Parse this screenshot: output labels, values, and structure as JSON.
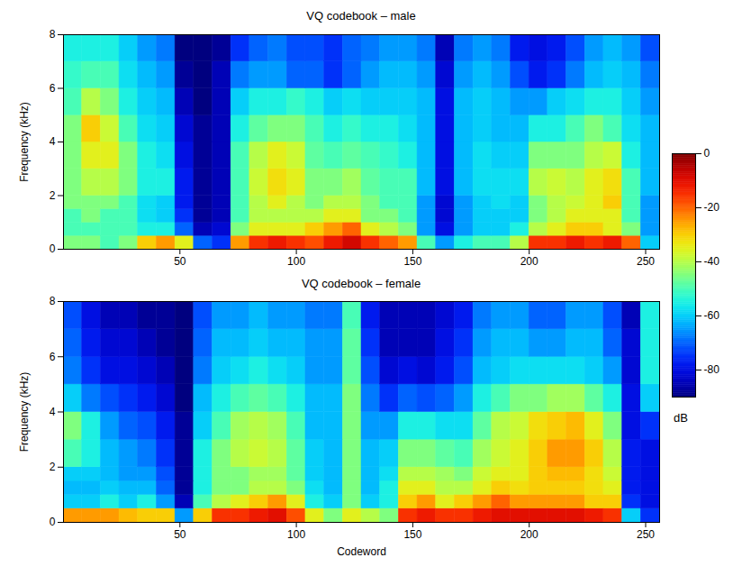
{
  "chart_data": [
    {
      "type": "heatmap",
      "title": "VQ codebook – male",
      "ylabel": "Frequency (kHz)",
      "xlim": [
        0,
        256
      ],
      "xticks": [
        50,
        100,
        150,
        200,
        250
      ],
      "ylim": [
        0,
        8
      ],
      "yticks": [
        0,
        2,
        4,
        6,
        8
      ],
      "x_edges": [
        0,
        8,
        16,
        24,
        32,
        40,
        48,
        56,
        64,
        72,
        80,
        88,
        96,
        104,
        112,
        120,
        128,
        136,
        144,
        152,
        160,
        168,
        176,
        184,
        192,
        200,
        208,
        216,
        224,
        232,
        240,
        248,
        256
      ],
      "y_edges": [
        0,
        0.5,
        1,
        1.5,
        2,
        3,
        4,
        5,
        6,
        7,
        8
      ],
      "cells": [
        [
          -45,
          -45,
          -50,
          -45,
          -30,
          -25,
          -35,
          -70,
          -75,
          -25,
          -15,
          -12,
          -15,
          -18,
          -12,
          -8,
          -15,
          -20,
          -25,
          -50,
          -65,
          -55,
          -50,
          -50,
          -40,
          -15,
          -15,
          -12,
          -15,
          -12,
          -20,
          -60
        ],
        [
          -50,
          -50,
          -50,
          -50,
          -55,
          -55,
          -70,
          -85,
          -82,
          -45,
          -35,
          -35,
          -35,
          -30,
          -25,
          -20,
          -35,
          -40,
          -45,
          -65,
          -80,
          -65,
          -60,
          -60,
          -55,
          -40,
          -35,
          -30,
          -30,
          -35,
          -45,
          -65
        ],
        [
          -50,
          -45,
          -50,
          -50,
          -58,
          -60,
          -75,
          -88,
          -85,
          -50,
          -40,
          -40,
          -40,
          -40,
          -35,
          -35,
          -45,
          -45,
          -50,
          -65,
          -82,
          -65,
          -60,
          -60,
          -60,
          -45,
          -40,
          -35,
          -35,
          -35,
          -50,
          -65
        ],
        [
          -45,
          -45,
          -45,
          -50,
          -58,
          -60,
          -78,
          -88,
          -85,
          -50,
          -40,
          -35,
          -40,
          -45,
          -40,
          -40,
          -45,
          -50,
          -50,
          -65,
          -82,
          -65,
          -60,
          -58,
          -60,
          -45,
          -40,
          -38,
          -35,
          -30,
          -50,
          -65
        ],
        [
          -45,
          -40,
          -40,
          -45,
          -55,
          -55,
          -78,
          -88,
          -85,
          -50,
          -38,
          -32,
          -35,
          -45,
          -45,
          -42,
          -48,
          -50,
          -50,
          -62,
          -80,
          -62,
          -58,
          -58,
          -58,
          -40,
          -38,
          -40,
          -35,
          -32,
          -50,
          -62
        ],
        [
          -45,
          -35,
          -35,
          -45,
          -55,
          -58,
          -80,
          -88,
          -85,
          -50,
          -40,
          -35,
          -38,
          -48,
          -50,
          -48,
          -50,
          -52,
          -55,
          -62,
          -80,
          -62,
          -58,
          -60,
          -60,
          -45,
          -45,
          -45,
          -40,
          -38,
          -55,
          -62
        ],
        [
          -45,
          -30,
          -38,
          -50,
          -58,
          -60,
          -82,
          -88,
          -85,
          -55,
          -48,
          -45,
          -45,
          -50,
          -55,
          -52,
          -55,
          -55,
          -58,
          -62,
          -80,
          -62,
          -60,
          -62,
          -62,
          -55,
          -55,
          -50,
          -45,
          -50,
          -58,
          -62
        ],
        [
          -50,
          -40,
          -45,
          -55,
          -60,
          -62,
          -85,
          -90,
          -85,
          -60,
          -55,
          -55,
          -52,
          -55,
          -60,
          -58,
          -60,
          -60,
          -60,
          -62,
          -80,
          -62,
          -60,
          -62,
          -65,
          -65,
          -60,
          -58,
          -55,
          -55,
          -60,
          -65
        ],
        [
          -52,
          -50,
          -50,
          -58,
          -62,
          -65,
          -88,
          -90,
          -85,
          -68,
          -65,
          -65,
          -70,
          -70,
          -75,
          -70,
          -65,
          -62,
          -62,
          -65,
          -82,
          -65,
          -62,
          -65,
          -72,
          -78,
          -75,
          -68,
          -62,
          -60,
          -62,
          -68
        ],
        [
          -55,
          -55,
          -55,
          -60,
          -65,
          -68,
          -90,
          -90,
          -88,
          -75,
          -70,
          -68,
          -72,
          -72,
          -75,
          -70,
          -68,
          -65,
          -65,
          -68,
          -85,
          -68,
          -65,
          -68,
          -78,
          -80,
          -78,
          -72,
          -65,
          -62,
          -65,
          -72
        ]
      ],
      "colorbar": {
        "range": [
          -90,
          0
        ],
        "ticks": [
          -80,
          -60,
          -40,
          -20,
          0
        ],
        "label": "dB"
      }
    },
    {
      "type": "heatmap",
      "title": "VQ codebook – female",
      "xlabel": "Codeword",
      "ylabel": "Frequency (kHz)",
      "xlim": [
        0,
        256
      ],
      "xticks": [
        50,
        100,
        150,
        200,
        250
      ],
      "ylim": [
        0,
        8
      ],
      "yticks": [
        0,
        2,
        4,
        6,
        8
      ],
      "x_edges": [
        0,
        8,
        16,
        24,
        32,
        40,
        48,
        56,
        64,
        72,
        80,
        88,
        96,
        104,
        112,
        120,
        128,
        136,
        144,
        152,
        160,
        168,
        176,
        184,
        192,
        200,
        208,
        216,
        224,
        232,
        240,
        248,
        256
      ],
      "y_edges": [
        0,
        0.5,
        1,
        1.5,
        2,
        3,
        4,
        5,
        6,
        7,
        8
      ],
      "cells": [
        [
          -25,
          -25,
          -25,
          -28,
          -30,
          -30,
          -65,
          -30,
          -15,
          -15,
          -12,
          -10,
          -18,
          -35,
          -45,
          -35,
          -40,
          -45,
          -15,
          -12,
          -15,
          -15,
          -12,
          -10,
          -10,
          -10,
          -10,
          -10,
          -12,
          -15,
          -60,
          -75
        ],
        [
          -60,
          -60,
          -55,
          -60,
          -55,
          -65,
          -85,
          -50,
          -40,
          -35,
          -30,
          -25,
          -35,
          -55,
          -60,
          -45,
          -60,
          -55,
          -30,
          -25,
          -35,
          -30,
          -25,
          -20,
          -25,
          -25,
          -25,
          -25,
          -30,
          -30,
          -75,
          -80
        ],
        [
          -62,
          -62,
          -60,
          -62,
          -62,
          -70,
          -88,
          -55,
          -45,
          -45,
          -40,
          -40,
          -45,
          -58,
          -62,
          -45,
          -62,
          -55,
          -35,
          -35,
          -40,
          -40,
          -35,
          -30,
          -32,
          -30,
          -30,
          -30,
          -32,
          -35,
          -78,
          -80
        ],
        [
          -60,
          -60,
          -62,
          -65,
          -65,
          -72,
          -88,
          -55,
          -45,
          -45,
          -42,
          -42,
          -48,
          -60,
          -62,
          -45,
          -62,
          -58,
          -40,
          -40,
          -42,
          -45,
          -38,
          -35,
          -35,
          -30,
          -28,
          -28,
          -32,
          -38,
          -78,
          -80
        ],
        [
          -50,
          -55,
          -62,
          -65,
          -68,
          -75,
          -88,
          -55,
          -45,
          -40,
          -38,
          -40,
          -48,
          -60,
          -62,
          -45,
          -62,
          -60,
          -45,
          -45,
          -48,
          -50,
          -42,
          -38,
          -35,
          -30,
          -25,
          -25,
          -30,
          -40,
          -78,
          -80
        ],
        [
          -45,
          -55,
          -65,
          -70,
          -72,
          -78,
          -88,
          -60,
          -50,
          -42,
          -40,
          -42,
          -50,
          -62,
          -62,
          -45,
          -65,
          -65,
          -55,
          -55,
          -58,
          -58,
          -48,
          -40,
          -38,
          -32,
          -30,
          -28,
          -35,
          -45,
          -80,
          -75
        ],
        [
          -60,
          -68,
          -72,
          -75,
          -78,
          -82,
          -90,
          -62,
          -55,
          -50,
          -48,
          -50,
          -55,
          -62,
          -62,
          -45,
          -68,
          -75,
          -70,
          -72,
          -70,
          -65,
          -55,
          -50,
          -45,
          -45,
          -42,
          -42,
          -48,
          -55,
          -80,
          -60
        ],
        [
          -68,
          -75,
          -80,
          -80,
          -82,
          -85,
          -90,
          -68,
          -60,
          -58,
          -55,
          -58,
          -60,
          -65,
          -65,
          -48,
          -72,
          -82,
          -80,
          -82,
          -78,
          -72,
          -62,
          -60,
          -58,
          -58,
          -58,
          -58,
          -60,
          -65,
          -82,
          -55
        ],
        [
          -70,
          -78,
          -82,
          -82,
          -85,
          -88,
          -90,
          -70,
          -62,
          -62,
          -60,
          -62,
          -62,
          -65,
          -65,
          -48,
          -75,
          -85,
          -85,
          -85,
          -80,
          -75,
          -65,
          -62,
          -62,
          -65,
          -65,
          -62,
          -62,
          -70,
          -82,
          -55
        ],
        [
          -72,
          -80,
          -85,
          -85,
          -88,
          -88,
          -90,
          -72,
          -65,
          -65,
          -62,
          -65,
          -65,
          -68,
          -68,
          -50,
          -78,
          -85,
          -85,
          -85,
          -82,
          -78,
          -68,
          -65,
          -65,
          -70,
          -70,
          -65,
          -65,
          -72,
          -85,
          -55
        ]
      ]
    }
  ]
}
